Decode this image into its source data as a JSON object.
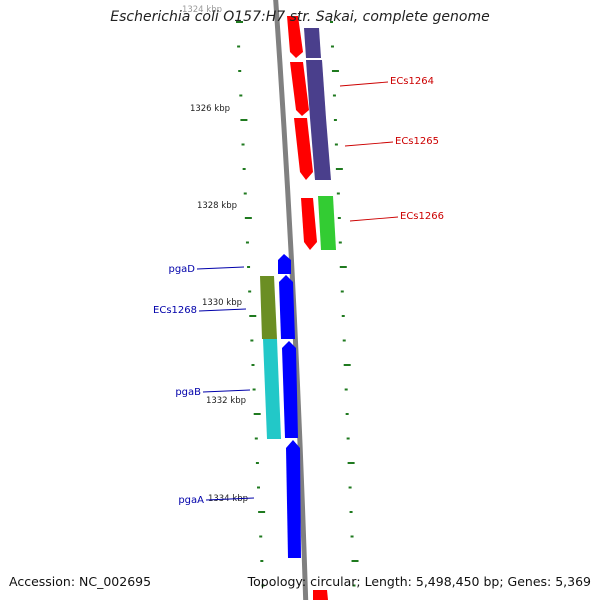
{
  "title": "Escherichia coli O157:H7 str. Sakai, complete genome",
  "footer": {
    "accession_label": "Accession: NC_002695",
    "summary_label": "Topology: circular; Length: 5,498,450 bp; Genes: 5,369"
  },
  "colors": {
    "backbone": "#808080",
    "tick": "#1f7a1f",
    "forward_gene": "#ff0000",
    "reverse_gene": "#0000ff",
    "cds_purple": "#4a3f8c",
    "cds_green": "#33cc33",
    "cds_olive": "#6b8e23",
    "cds_cyan": "#22c8c8",
    "forward_label": "#cc0000",
    "reverse_label": "#0000aa"
  },
  "scale": {
    "tick_labels": [
      "1324 kbp",
      "1326 kbp",
      "1328 kbp",
      "1330 kbp",
      "1332 kbp",
      "1334 kbp"
    ]
  },
  "genes": {
    "forward": [
      {
        "label": "ECs1264"
      },
      {
        "label": "ECs1265"
      },
      {
        "label": "ECs1266"
      }
    ],
    "reverse": [
      {
        "label": "pgaD"
      },
      {
        "label": "ECs1268"
      },
      {
        "label": "pgaB"
      },
      {
        "label": "pgaA"
      }
    ]
  }
}
